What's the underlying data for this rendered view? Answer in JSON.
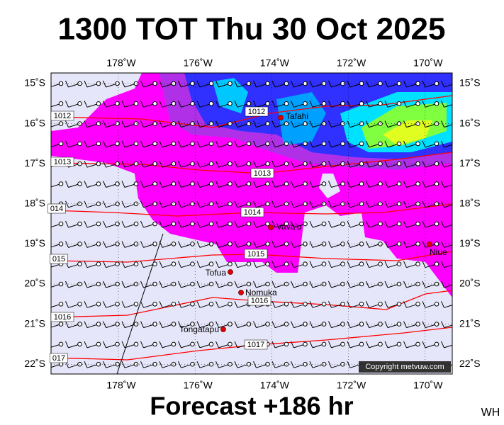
{
  "header": {
    "title": "1300 TOT Thu 30 Oct 2025"
  },
  "map": {
    "longitudes": [
      "178˚W",
      "176˚W",
      "174˚W",
      "172˚W",
      "170˚W"
    ],
    "latitudes": [
      "15˚S",
      "16˚S",
      "17˚S",
      "18˚S",
      "19˚S",
      "20˚S",
      "21˚S",
      "22˚S"
    ],
    "isobar_labels": [
      "1012",
      "1013",
      "1014",
      "1015",
      "1016",
      "1017"
    ],
    "isobar_edge_labels": [
      "1012",
      "1013",
      "014",
      "015",
      "1016",
      "017"
    ],
    "places": [
      "Tafahi",
      "Vava'u",
      "Niue",
      "Tofua",
      "Nomuka",
      "Tongatapu"
    ],
    "copyright": "Copyright metvuw.com"
  },
  "footer": {
    "forecast": "Forecast +186 hr",
    "tag": "WH"
  }
}
